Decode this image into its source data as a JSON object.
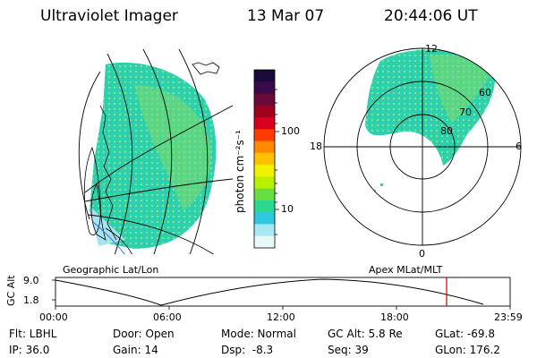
{
  "header": {
    "title": "Ultraviolet Imager",
    "date": "13 Mar 07",
    "time": "20:44:06 UT"
  },
  "colorbar": {
    "unit_label": "photon cm⁻²s⁻¹",
    "ticks": [
      "100",
      "10"
    ],
    "colors": [
      "#1a0a3a",
      "#3a0a4a",
      "#6a0a3a",
      "#a00020",
      "#d8001a",
      "#ff3b00",
      "#ff8a00",
      "#ffc000",
      "#f2f200",
      "#b8f000",
      "#66e040",
      "#2cd890",
      "#30c8e0",
      "#a8e8f0",
      "#e8f8f8"
    ]
  },
  "geo_panel": {
    "caption": "Geographic Lat/Lon"
  },
  "polar_panel": {
    "caption": "Apex MLat/MLT",
    "mlt_labels": {
      "top": "12",
      "right": "6",
      "bottom": "0",
      "left": "18"
    },
    "lat_labels": [
      "60",
      "70",
      "80"
    ]
  },
  "timeline": {
    "ylabel": "GC Alt",
    "yticks": [
      "9.0",
      "1.8"
    ],
    "xticks": [
      "00:00",
      "06:00",
      "12:00",
      "18:00",
      "23:59"
    ],
    "marker_color": "#cc0000"
  },
  "info": {
    "flt": "Flt: LBHL",
    "ip": "IP: 36.0",
    "door": "Door: Open",
    "gain": "Gain: 14",
    "mode": "Mode: Normal",
    "dsp": "Dsp:  -8.3",
    "gc_alt": "GC Alt: 5.8 Re",
    "seq": "Seq: 39",
    "glat": "GLat: -69.8",
    "glon": "GLon: 176.2"
  }
}
